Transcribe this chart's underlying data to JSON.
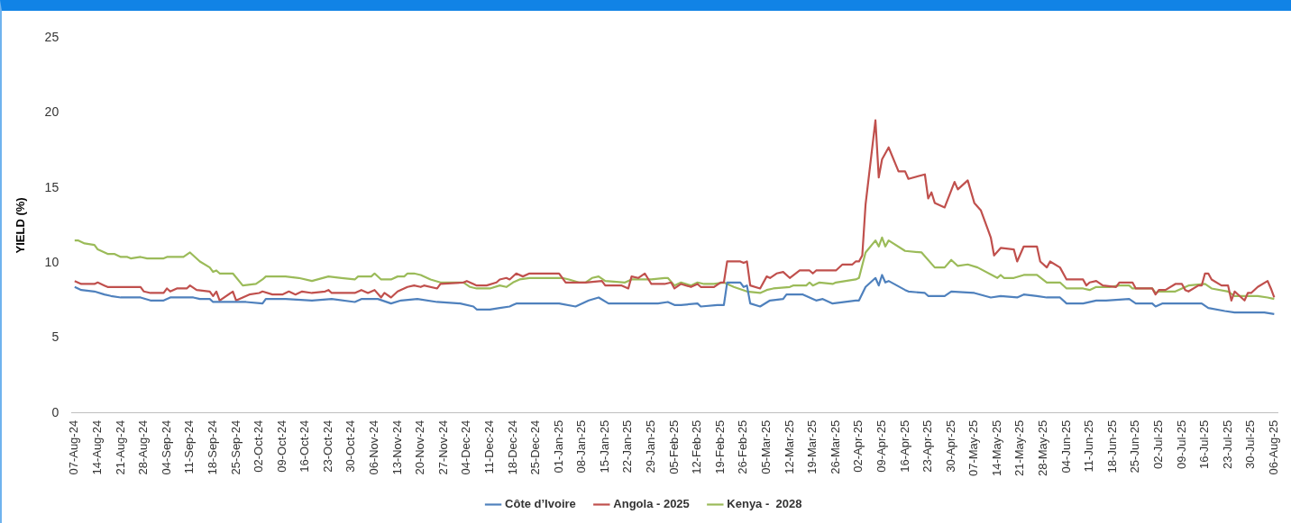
{
  "chart_data": {
    "type": "line",
    "ylabel": "YIELD (%)",
    "ylim": [
      0,
      25
    ],
    "yticks": [
      0,
      5,
      10,
      15,
      20,
      25
    ],
    "xlim": [
      "2024-08-06",
      "2025-08-07"
    ],
    "xticks": [
      {
        "value": "2024-08-07",
        "label": "07-Aug-24"
      },
      {
        "value": "2024-08-14",
        "label": "14-Aug-24"
      },
      {
        "value": "2024-08-21",
        "label": "21-Aug-24"
      },
      {
        "value": "2024-08-28",
        "label": "28-Aug-24"
      },
      {
        "value": "2024-09-04",
        "label": "04-Sep-24"
      },
      {
        "value": "2024-09-11",
        "label": "11-Sep-24"
      },
      {
        "value": "2024-09-18",
        "label": "18-Sep-24"
      },
      {
        "value": "2024-09-25",
        "label": "25-Sep-24"
      },
      {
        "value": "2024-10-02",
        "label": "02-Oct-24"
      },
      {
        "value": "2024-10-09",
        "label": "09-Oct-24"
      },
      {
        "value": "2024-10-16",
        "label": "16-Oct-24"
      },
      {
        "value": "2024-10-23",
        "label": "23-Oct-24"
      },
      {
        "value": "2024-10-30",
        "label": "30-Oct-24"
      },
      {
        "value": "2024-11-06",
        "label": "06-Nov-24"
      },
      {
        "value": "2024-11-13",
        "label": "13-Nov-24"
      },
      {
        "value": "2024-11-20",
        "label": "20-Nov-24"
      },
      {
        "value": "2024-11-27",
        "label": "27-Nov-24"
      },
      {
        "value": "2024-12-04",
        "label": "04-Dec-24"
      },
      {
        "value": "2024-12-11",
        "label": "11-Dec-24"
      },
      {
        "value": "2024-12-18",
        "label": "18-Dec-24"
      },
      {
        "value": "2024-12-25",
        "label": "25-Dec-24"
      },
      {
        "value": "2025-01-01",
        "label": "01-Jan-25"
      },
      {
        "value": "2025-01-08",
        "label": "08-Jan-25"
      },
      {
        "value": "2025-01-15",
        "label": "15-Jan-25"
      },
      {
        "value": "2025-01-22",
        "label": "22-Jan-25"
      },
      {
        "value": "2025-01-29",
        "label": "29-Jan-25"
      },
      {
        "value": "2025-02-05",
        "label": "05-Feb-25"
      },
      {
        "value": "2025-02-12",
        "label": "12-Feb-25"
      },
      {
        "value": "2025-02-19",
        "label": "19-Feb-25"
      },
      {
        "value": "2025-02-26",
        "label": "26-Feb-25"
      },
      {
        "value": "2025-03-05",
        "label": "05-Mar-25"
      },
      {
        "value": "2025-03-12",
        "label": "12-Mar-25"
      },
      {
        "value": "2025-03-19",
        "label": "19-Mar-25"
      },
      {
        "value": "2025-03-26",
        "label": "26-Mar-25"
      },
      {
        "value": "2025-04-02",
        "label": "02-Apr-25"
      },
      {
        "value": "2025-04-09",
        "label": "09-Apr-25"
      },
      {
        "value": "2025-04-16",
        "label": "16-Apr-25"
      },
      {
        "value": "2025-04-23",
        "label": "23-Apr-25"
      },
      {
        "value": "2025-04-30",
        "label": "30-Apr-25"
      },
      {
        "value": "2025-05-07",
        "label": "07-May-25"
      },
      {
        "value": "2025-05-14",
        "label": "14-May-25"
      },
      {
        "value": "2025-05-21",
        "label": "21-May-25"
      },
      {
        "value": "2025-05-28",
        "label": "28-May-25"
      },
      {
        "value": "2025-06-04",
        "label": "04-Jun-25"
      },
      {
        "value": "2025-06-11",
        "label": "11-Jun-25"
      },
      {
        "value": "2025-06-18",
        "label": "18-Jun-25"
      },
      {
        "value": "2025-06-25",
        "label": "25-Jun-25"
      },
      {
        "value": "2025-07-02",
        "label": "02-Jul-25"
      },
      {
        "value": "2025-07-09",
        "label": "09-Jul-25"
      },
      {
        "value": "2025-07-16",
        "label": "16-Jul-25"
      },
      {
        "value": "2025-07-23",
        "label": "23-Jul-25"
      },
      {
        "value": "2025-07-30",
        "label": "30-Jul-25"
      },
      {
        "value": "2025-08-06",
        "label": "06-Aug-25"
      }
    ],
    "marker": "none",
    "line_style": "solid",
    "legend": "bottom",
    "series": [
      {
        "name": "Côte d’Ivoire",
        "color": "#4f81bd",
        "x": [
          "2024-08-07",
          "2024-08-09",
          "2024-08-13",
          "2024-08-16",
          "2024-08-18",
          "2024-08-21",
          "2024-08-27",
          "2024-08-30",
          "2024-09-03",
          "2024-09-05",
          "2024-09-12",
          "2024-09-14",
          "2024-09-17",
          "2024-09-18",
          "2024-09-24",
          "2024-09-28",
          "2024-10-03",
          "2024-10-04",
          "2024-10-10",
          "2024-10-18",
          "2024-10-24",
          "2024-10-31",
          "2024-11-02",
          "2024-11-07",
          "2024-11-11",
          "2024-11-14",
          "2024-11-19",
          "2024-11-25",
          "2024-12-02",
          "2024-12-06",
          "2024-12-07",
          "2024-12-11",
          "2024-12-14",
          "2024-12-17",
          "2024-12-18",
          "2024-12-19",
          "2024-12-27",
          "2025-01-01",
          "2025-01-06",
          "2025-01-10",
          "2025-01-13",
          "2025-01-16",
          "2025-01-22",
          "2025-01-29",
          "2025-01-31",
          "2025-02-03",
          "2025-02-05",
          "2025-02-07",
          "2025-02-12",
          "2025-02-13",
          "2025-02-18",
          "2025-02-20",
          "2025-02-21",
          "2025-02-25",
          "2025-02-26",
          "2025-02-27",
          "2025-02-28",
          "2025-03-03",
          "2025-03-06",
          "2025-03-10",
          "2025-03-11",
          "2025-03-16",
          "2025-03-20",
          "2025-03-22",
          "2025-03-25",
          "2025-04-01",
          "2025-04-02",
          "2025-04-04",
          "2025-04-07",
          "2025-04-08",
          "2025-04-09",
          "2025-04-10",
          "2025-04-11",
          "2025-04-16",
          "2025-04-17",
          "2025-04-22",
          "2025-04-23",
          "2025-04-28",
          "2025-04-30",
          "2025-05-07",
          "2025-05-12",
          "2025-05-15",
          "2025-05-20",
          "2025-05-22",
          "2025-05-26",
          "2025-05-29",
          "2025-06-02",
          "2025-06-04",
          "2025-06-09",
          "2025-06-13",
          "2025-06-16",
          "2025-06-23",
          "2025-06-25",
          "2025-06-30",
          "2025-07-01",
          "2025-07-03",
          "2025-07-14",
          "2025-07-15",
          "2025-07-17",
          "2025-07-22",
          "2025-07-25",
          "2025-07-31",
          "2025-08-01",
          "2025-08-03",
          "2025-08-06"
        ],
        "values": [
          8.4,
          8.2,
          8.1,
          7.9,
          7.8,
          7.7,
          7.7,
          7.5,
          7.5,
          7.7,
          7.7,
          7.6,
          7.6,
          7.4,
          7.4,
          7.4,
          7.3,
          7.6,
          7.6,
          7.5,
          7.6,
          7.4,
          7.6,
          7.6,
          7.3,
          7.5,
          7.6,
          7.4,
          7.3,
          7.1,
          6.9,
          6.9,
          7.0,
          7.1,
          7.2,
          7.3,
          7.3,
          7.3,
          7.1,
          7.5,
          7.7,
          7.3,
          7.3,
          7.3,
          7.3,
          7.4,
          7.2,
          7.2,
          7.3,
          7.1,
          7.2,
          7.2,
          8.7,
          8.7,
          8.4,
          8.5,
          7.3,
          7.1,
          7.5,
          7.6,
          7.9,
          7.9,
          7.5,
          7.6,
          7.3,
          7.5,
          7.5,
          8.4,
          9.0,
          8.5,
          9.2,
          8.7,
          8.8,
          8.2,
          8.1,
          8.0,
          7.8,
          7.8,
          8.1,
          8.0,
          7.7,
          7.8,
          7.7,
          7.9,
          7.8,
          7.7,
          7.7,
          7.3,
          7.3,
          7.5,
          7.5,
          7.6,
          7.3,
          7.3,
          7.1,
          7.3,
          7.3,
          7.3,
          7.0,
          6.8,
          6.7,
          6.7,
          6.7,
          6.7,
          6.6
        ]
      },
      {
        "name": "Angola - 2025",
        "color": "#c0504d",
        "x": [
          "2024-08-07",
          "2024-08-09",
          "2024-08-13",
          "2024-08-14",
          "2024-08-16",
          "2024-08-17",
          "2024-08-21",
          "2024-08-27",
          "2024-08-28",
          "2024-08-30",
          "2024-09-03",
          "2024-09-04",
          "2024-09-05",
          "2024-09-07",
          "2024-09-10",
          "2024-09-11",
          "2024-09-13",
          "2024-09-17",
          "2024-09-18",
          "2024-09-19",
          "2024-09-20",
          "2024-09-24",
          "2024-09-25",
          "2024-09-29",
          "2024-10-02",
          "2024-10-03",
          "2024-10-06",
          "2024-10-09",
          "2024-10-11",
          "2024-10-13",
          "2024-10-15",
          "2024-10-18",
          "2024-10-22",
          "2024-10-23",
          "2024-10-24",
          "2024-10-31",
          "2024-11-02",
          "2024-11-04",
          "2024-11-06",
          "2024-11-08",
          "2024-11-09",
          "2024-11-11",
          "2024-11-13",
          "2024-11-16",
          "2024-11-18",
          "2024-11-20",
          "2024-11-21",
          "2024-11-25",
          "2024-11-26",
          "2024-12-03",
          "2024-12-04",
          "2024-12-06",
          "2024-12-07",
          "2024-12-10",
          "2024-12-13",
          "2024-12-14",
          "2024-12-16",
          "2024-12-17",
          "2024-12-19",
          "2024-12-21",
          "2024-12-23",
          "2025-01-01",
          "2025-01-03",
          "2025-01-09",
          "2025-01-14",
          "2025-01-15",
          "2025-01-20",
          "2025-01-22",
          "2025-01-23",
          "2025-01-25",
          "2025-01-27",
          "2025-01-29",
          "2025-02-02",
          "2025-02-04",
          "2025-02-05",
          "2025-02-07",
          "2025-02-10",
          "2025-02-12",
          "2025-02-13",
          "2025-02-17",
          "2025-02-19",
          "2025-02-20",
          "2025-02-21",
          "2025-02-25",
          "2025-02-26",
          "2025-02-27",
          "2025-02-28",
          "2025-03-03",
          "2025-03-05",
          "2025-03-06",
          "2025-03-08",
          "2025-03-10",
          "2025-03-12",
          "2025-03-15",
          "2025-03-18",
          "2025-03-19",
          "2025-03-20",
          "2025-03-26",
          "2025-03-28",
          "2025-03-31",
          "2025-04-01",
          "2025-04-02",
          "2025-04-03",
          "2025-04-04",
          "2025-04-07",
          "2025-04-08",
          "2025-04-09",
          "2025-04-11",
          "2025-04-14",
          "2025-04-16",
          "2025-04-17",
          "2025-04-22",
          "2025-04-23",
          "2025-04-24",
          "2025-04-25",
          "2025-04-28",
          "2025-05-01",
          "2025-05-02",
          "2025-05-05",
          "2025-05-07",
          "2025-05-09",
          "2025-05-12",
          "2025-05-13",
          "2025-05-15",
          "2025-05-19",
          "2025-05-20",
          "2025-05-22",
          "2025-05-26",
          "2025-05-27",
          "2025-05-29",
          "2025-05-30",
          "2025-06-02",
          "2025-06-04",
          "2025-06-09",
          "2025-06-10",
          "2025-06-11",
          "2025-06-13",
          "2025-06-15",
          "2025-06-19",
          "2025-06-20",
          "2025-06-24",
          "2025-06-25",
          "2025-06-30",
          "2025-07-01",
          "2025-07-02",
          "2025-07-04",
          "2025-07-07",
          "2025-07-09",
          "2025-07-10",
          "2025-07-11",
          "2025-07-14",
          "2025-07-15",
          "2025-07-16",
          "2025-07-17",
          "2025-07-18",
          "2025-07-21",
          "2025-07-23",
          "2025-07-24",
          "2025-07-25",
          "2025-07-28",
          "2025-07-29",
          "2025-07-30",
          "2025-08-01",
          "2025-08-04",
          "2025-08-05",
          "2025-08-06"
        ],
        "values": [
          8.8,
          8.6,
          8.6,
          8.7,
          8.5,
          8.4,
          8.4,
          8.4,
          8.1,
          8.0,
          8.0,
          8.3,
          8.1,
          8.3,
          8.3,
          8.5,
          8.2,
          8.1,
          7.8,
          8.1,
          7.5,
          8.1,
          7.5,
          7.9,
          8.0,
          8.1,
          7.9,
          7.9,
          8.1,
          7.9,
          8.1,
          8.0,
          8.1,
          8.2,
          8.0,
          8.0,
          8.2,
          8.0,
          8.2,
          7.7,
          8.0,
          7.7,
          8.1,
          8.4,
          8.5,
          8.4,
          8.5,
          8.3,
          8.6,
          8.7,
          8.8,
          8.6,
          8.5,
          8.5,
          8.7,
          8.9,
          9.0,
          8.9,
          9.3,
          9.1,
          9.3,
          9.3,
          8.7,
          8.7,
          8.8,
          8.5,
          8.5,
          8.3,
          9.1,
          9.0,
          9.3,
          8.6,
          8.6,
          8.7,
          8.3,
          8.6,
          8.4,
          8.6,
          8.4,
          8.4,
          8.7,
          8.7,
          10.1,
          10.1,
          10.0,
          10.1,
          8.5,
          8.3,
          9.1,
          9.0,
          9.3,
          9.4,
          9.0,
          9.5,
          9.5,
          9.3,
          9.5,
          9.5,
          9.9,
          9.9,
          10.1,
          10.1,
          10.5,
          13.9,
          19.5,
          15.7,
          16.9,
          17.7,
          16.1,
          16.1,
          15.6,
          15.9,
          14.3,
          14.7,
          14.0,
          13.7,
          15.4,
          14.9,
          15.5,
          14.0,
          13.5,
          11.7,
          10.5,
          11.0,
          10.9,
          10.1,
          11.1,
          11.1,
          10.1,
          9.7,
          10.1,
          9.7,
          8.9,
          8.9,
          8.5,
          8.7,
          8.8,
          8.5,
          8.4,
          8.7,
          8.7,
          8.3,
          8.3,
          7.9,
          8.2,
          8.2,
          8.6,
          8.6,
          8.2,
          8.1,
          8.5,
          8.5,
          9.3,
          9.3,
          8.9,
          8.5,
          8.5,
          7.5,
          8.1,
          7.5,
          8.0,
          8.0,
          8.4,
          8.8,
          8.3,
          7.7
        ]
      },
      {
        "name": "Kenya -  2028",
        "color": "#9bbb59",
        "x": [
          "2024-08-07",
          "2024-08-08",
          "2024-08-10",
          "2024-08-13",
          "2024-08-14",
          "2024-08-17",
          "2024-08-19",
          "2024-08-21",
          "2024-08-23",
          "2024-08-24",
          "2024-08-27",
          "2024-08-29",
          "2024-09-03",
          "2024-09-04",
          "2024-09-09",
          "2024-09-11",
          "2024-09-14",
          "2024-09-17",
          "2024-09-18",
          "2024-09-19",
          "2024-09-20",
          "2024-09-24",
          "2024-09-27",
          "2024-10-01",
          "2024-10-03",
          "2024-10-04",
          "2024-10-10",
          "2024-10-14",
          "2024-10-18",
          "2024-10-23",
          "2024-10-27",
          "2024-10-31",
          "2024-11-01",
          "2024-11-05",
          "2024-11-06",
          "2024-11-08",
          "2024-11-11",
          "2024-11-13",
          "2024-11-15",
          "2024-11-16",
          "2024-11-18",
          "2024-11-20",
          "2024-11-23",
          "2024-11-26",
          "2024-12-03",
          "2024-12-05",
          "2024-12-07",
          "2024-12-11",
          "2024-12-14",
          "2024-12-16",
          "2024-12-18",
          "2024-12-20",
          "2024-12-23",
          "2025-01-02",
          "2025-01-04",
          "2025-01-07",
          "2025-01-09",
          "2025-01-11",
          "2025-01-13",
          "2025-01-15",
          "2025-01-21",
          "2025-01-23",
          "2025-01-29",
          "2025-02-02",
          "2025-02-03",
          "2025-02-05",
          "2025-02-07",
          "2025-02-10",
          "2025-02-12",
          "2025-02-14",
          "2025-02-17",
          "2025-02-20",
          "2025-02-23",
          "2025-02-27",
          "2025-03-03",
          "2025-03-05",
          "2025-03-07",
          "2025-03-12",
          "2025-03-13",
          "2025-03-17",
          "2025-03-18",
          "2025-03-19",
          "2025-03-21",
          "2025-03-25",
          "2025-03-26",
          "2025-04-01",
          "2025-04-02",
          "2025-04-04",
          "2025-04-07",
          "2025-04-08",
          "2025-04-09",
          "2025-04-10",
          "2025-04-11",
          "2025-04-16",
          "2025-04-21",
          "2025-04-25",
          "2025-04-28",
          "2025-04-30",
          "2025-05-02",
          "2025-05-05",
          "2025-05-08",
          "2025-05-14",
          "2025-05-15",
          "2025-05-16",
          "2025-05-19",
          "2025-05-22",
          "2025-05-26",
          "2025-05-29",
          "2025-06-02",
          "2025-06-04",
          "2025-06-09",
          "2025-06-11",
          "2025-06-13",
          "2025-06-17",
          "2025-06-20",
          "2025-06-23",
          "2025-06-24",
          "2025-06-30",
          "2025-07-01",
          "2025-07-02",
          "2025-07-07",
          "2025-07-11",
          "2025-07-16",
          "2025-07-18",
          "2025-07-23",
          "2025-07-25",
          "2025-08-01",
          "2025-08-04",
          "2025-08-06"
        ],
        "values": [
          11.5,
          11.5,
          11.3,
          11.2,
          10.9,
          10.6,
          10.6,
          10.4,
          10.4,
          10.3,
          10.4,
          10.3,
          10.3,
          10.4,
          10.4,
          10.7,
          10.1,
          9.7,
          9.4,
          9.5,
          9.3,
          9.3,
          8.5,
          8.6,
          8.9,
          9.1,
          9.1,
          9.0,
          8.8,
          9.1,
          9.0,
          8.9,
          9.1,
          9.1,
          9.3,
          8.9,
          8.9,
          9.1,
          9.1,
          9.3,
          9.3,
          9.2,
          8.9,
          8.7,
          8.7,
          8.4,
          8.3,
          8.3,
          8.5,
          8.4,
          8.7,
          8.9,
          9.0,
          9.0,
          8.9,
          8.7,
          8.7,
          9.0,
          9.1,
          8.8,
          8.7,
          8.9,
          8.9,
          9.0,
          9.0,
          8.5,
          8.7,
          8.5,
          8.7,
          8.6,
          8.6,
          8.7,
          8.4,
          8.1,
          8.0,
          8.2,
          8.3,
          8.4,
          8.5,
          8.5,
          8.7,
          8.5,
          8.7,
          8.6,
          8.7,
          8.9,
          9.0,
          10.7,
          11.5,
          11.1,
          11.7,
          11.1,
          11.5,
          10.8,
          10.7,
          9.7,
          9.7,
          10.2,
          9.8,
          9.9,
          9.7,
          9.0,
          9.2,
          9.0,
          9.0,
          9.2,
          9.2,
          8.7,
          8.7,
          8.3,
          8.3,
          8.2,
          8.4,
          8.4,
          8.5,
          8.5,
          8.3,
          8.3,
          8.0,
          8.1,
          8.1,
          8.5,
          8.6,
          8.3,
          8.1,
          7.8,
          7.8,
          7.7,
          7.6
        ]
      }
    ]
  }
}
